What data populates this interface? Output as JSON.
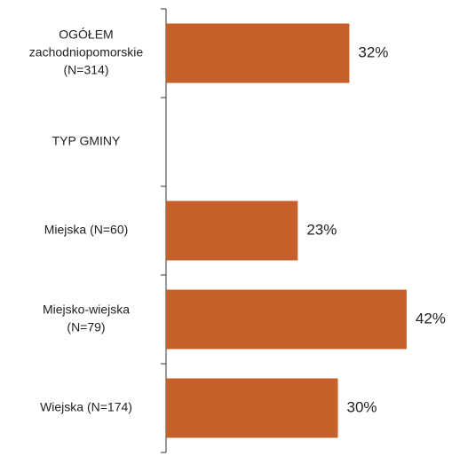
{
  "chart_data": {
    "type": "bar",
    "orientation": "horizontal",
    "categories": [
      [
        "OGÓŁEM",
        "zachodniopomorskie",
        "(N=314)"
      ],
      [
        "TYP GMINY"
      ],
      [
        "Miejska (N=60)"
      ],
      [
        "Miejsko-wiejska",
        "(N=79)"
      ],
      [
        "Wiejska (N=174)"
      ]
    ],
    "values": [
      32,
      null,
      23,
      42,
      30
    ],
    "value_labels": [
      "32%",
      null,
      "23%",
      "42%",
      "30%"
    ],
    "color": "#c8602b"
  }
}
